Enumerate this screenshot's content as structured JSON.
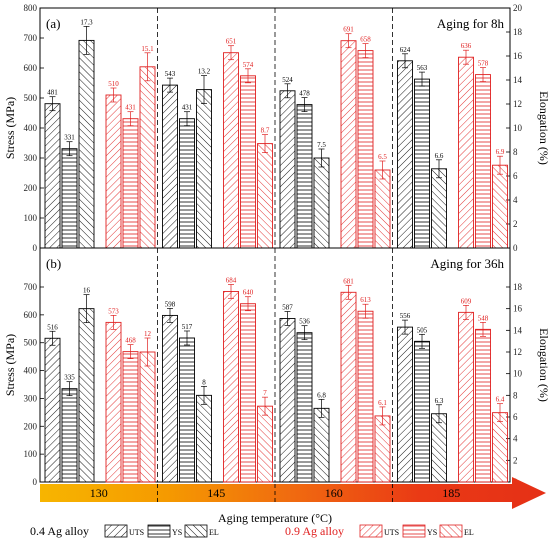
{
  "chart_data": {
    "type": "bar",
    "temperatures": [
      "130",
      "145",
      "160",
      "185"
    ],
    "xlabel": "Aging temperature (°C)",
    "ylabel_left": "Stress (MPa)",
    "ylabel_right": "Elongation (%)",
    "ylim_left": [
      0,
      800
    ],
    "ylim_right": [
      0,
      20
    ],
    "yticks_left": [
      0,
      100,
      200,
      300,
      400,
      500,
      600,
      700,
      800
    ],
    "yticks_right": [
      0,
      2,
      4,
      6,
      8,
      10,
      12,
      14,
      16,
      18,
      20
    ],
    "ylim_left_b": [
      0,
      700
    ],
    "ylim_right_b": [
      0,
      18
    ],
    "yticks_left_b": [
      0,
      100,
      200,
      300,
      400,
      500,
      600,
      700
    ],
    "yticks_right_b": [
      0,
      2,
      4,
      6,
      8,
      10,
      12,
      14,
      16,
      18
    ],
    "legend": {
      "alloy1": "0.4 Ag alloy",
      "alloy2": "0.9 Ag alloy",
      "uts": "UTS",
      "ys": "YS",
      "el": "EL",
      "alloy1_color": "#000000",
      "alloy2_color": "#e02020"
    },
    "panels": [
      {
        "label": "(a)",
        "title": "Aging for 8h",
        "groups": [
          {
            "alloy04": {
              "uts": 481,
              "ys": 331,
              "el": 17.3
            },
            "alloy09": {
              "uts": 510,
              "ys": 431,
              "el": 15.1
            }
          },
          {
            "alloy04": {
              "uts": 543,
              "ys": 431,
              "el": 13.2
            },
            "alloy09": {
              "uts": 651,
              "ys": 574,
              "el": 8.7
            }
          },
          {
            "alloy04": {
              "uts": 524,
              "ys": 478,
              "el": 7.5
            },
            "alloy09": {
              "uts": 691,
              "ys": 658,
              "el": 6.5
            }
          },
          {
            "alloy04": {
              "uts": 624,
              "ys": 563,
              "el": 6.6
            },
            "alloy09": {
              "uts": 636,
              "ys": 578,
              "el": 6.9
            }
          }
        ]
      },
      {
        "label": "(b)",
        "title": "Aging for 36h",
        "groups": [
          {
            "alloy04": {
              "uts": 516,
              "ys": 335,
              "el": 16
            },
            "alloy09": {
              "uts": 573,
              "ys": 468,
              "el": 12
            }
          },
          {
            "alloy04": {
              "uts": 598,
              "ys": 517,
              "el": 8
            },
            "alloy09": {
              "uts": 684,
              "ys": 640,
              "el": 7
            }
          },
          {
            "alloy04": {
              "uts": 587,
              "ys": 536,
              "el": 6.8
            },
            "alloy09": {
              "uts": 681,
              "ys": 613,
              "el": 6.1
            }
          },
          {
            "alloy04": {
              "uts": 556,
              "ys": 505,
              "el": 6.3
            },
            "alloy09": {
              "uts": 609,
              "ys": 548,
              "el": 6.4
            }
          }
        ]
      }
    ],
    "temperature_bar_colors": [
      "#f7b500",
      "#f59a00",
      "#f06a10",
      "#ea3a15",
      "#e53016"
    ]
  }
}
